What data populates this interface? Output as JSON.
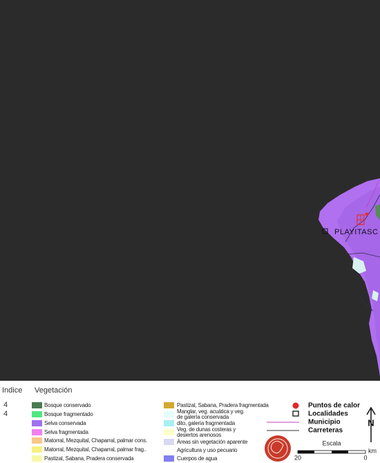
{
  "map": {
    "localities": [
      "PLAYITASC"
    ]
  },
  "legend": {
    "headers": [
      "Indice",
      "Vegetación"
    ],
    "index": [
      "4",
      "4"
    ],
    "vegetation": [
      [
        "Bosque conservado"
      ],
      [
        "Bosque fragmentado"
      ],
      [
        "Selva conservada"
      ],
      [
        "Selva fragmentada"
      ],
      [
        "Matorral, Mezquital, Chaparral, palmar cons."
      ],
      [
        "Matorral, Mezquital, Chaparral, palmar frag.."
      ],
      [
        "Pastizal, Sabana, Pradera conservada"
      ],
      [
        "Pastizal, Sabana, Pradera fragmentada"
      ],
      [
        "Manglar, veg. acuática y veg.",
        "de galería conservada"
      ],
      [
        "dito, galería fragmentada"
      ],
      [
        "Veg. de dunas costeras y",
        "desiertos arenosos"
      ],
      [
        "Áreas sin vegetación aparente"
      ],
      [
        "Agricultura y uso pecuario"
      ],
      [
        "Cuerpos de agua"
      ]
    ],
    "symbols": [
      "Puntos de calor",
      "Localidades",
      "Municipio",
      "Carreteras"
    ],
    "north": "N",
    "scale": {
      "title": "Escala",
      "ticks": [
        "20",
        "0"
      ],
      "unit": "km"
    }
  }
}
